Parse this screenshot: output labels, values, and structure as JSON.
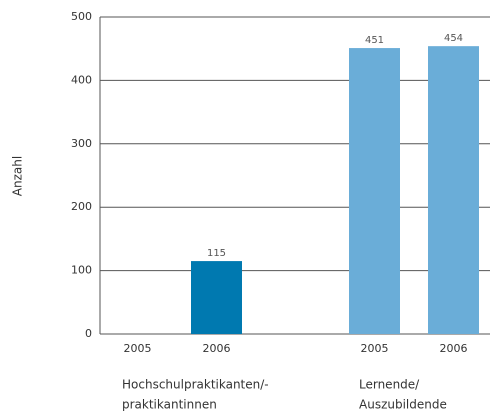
{
  "chart_data": {
    "type": "bar",
    "y_label": "Anzahl",
    "groups": [
      {
        "label": [
          "Hochschulpraktikanten/-",
          "praktikantinnen"
        ],
        "color": "#0079b0",
        "categories": [
          "2005",
          "2006"
        ],
        "values": [
          null,
          115
        ]
      },
      {
        "label": [
          "Lernende/",
          "Auszubildende"
        ],
        "color": "#6aadd8",
        "categories": [
          "2005",
          "2006"
        ],
        "values": [
          451,
          454
        ]
      }
    ],
    "ylim": [
      0,
      500
    ],
    "yticks": [
      0,
      100,
      200,
      300,
      400,
      500
    ],
    "grid": true
  }
}
